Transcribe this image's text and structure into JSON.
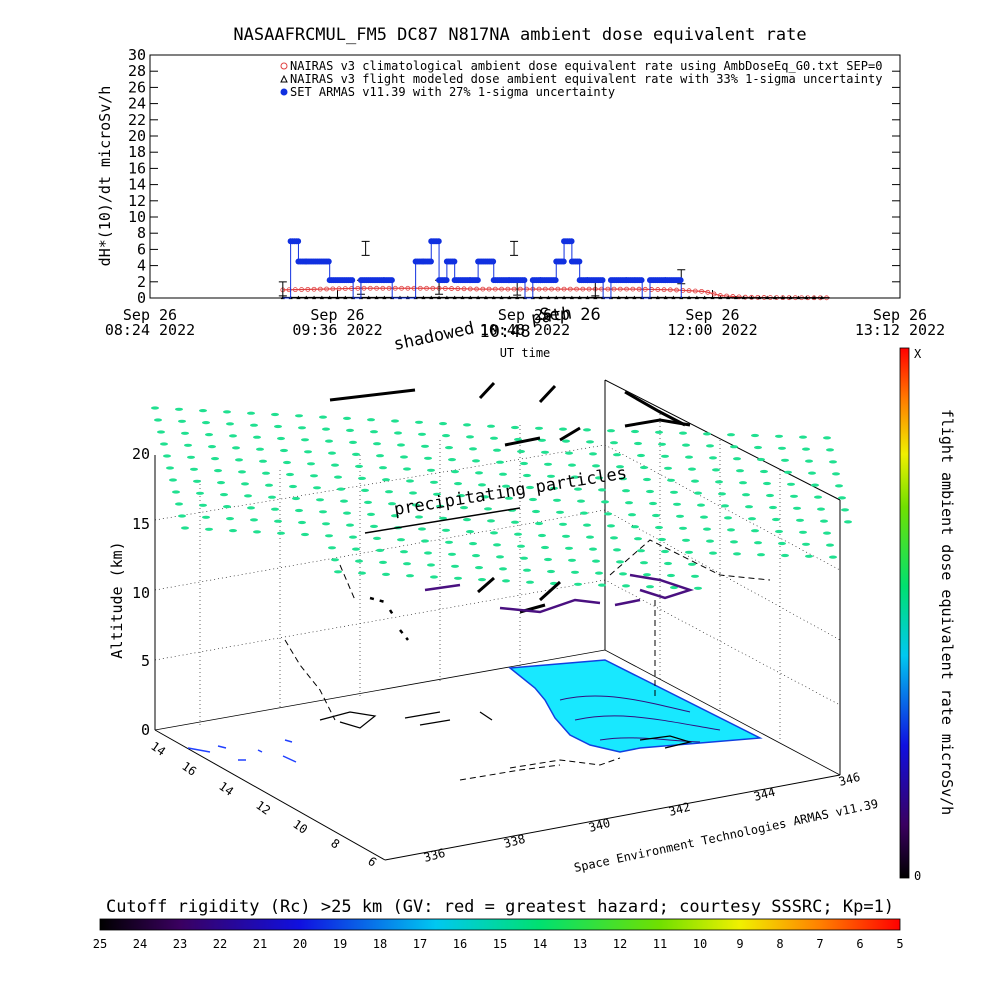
{
  "chart_data": [
    {
      "type": "line",
      "title": "NASAAFRCMUL_FM5 DC87 N817NA ambient dose equivalent rate",
      "ylabel": "dH*(10)/dt microSv/h",
      "xlabel": "UT time",
      "ylim": [
        0,
        30
      ],
      "yticks": [
        "0",
        "2",
        "4",
        "6",
        "8",
        "10",
        "12",
        "14",
        "16",
        "18",
        "20",
        "22",
        "24",
        "26",
        "28",
        "30"
      ],
      "xlim_hours": [
        8.4,
        13.2
      ],
      "xticks": [
        {
          "t": 8.4,
          "line1": "Sep 26",
          "line2": "08:24 2022"
        },
        {
          "t": 9.6,
          "line1": "Sep 26",
          "line2": "09:36 2022"
        },
        {
          "t": 10.8,
          "line1": "Sep 26",
          "line2": "10:48 2022"
        },
        {
          "t": 12.0,
          "line1": "Sep 26",
          "line2": "12:00 2022"
        },
        {
          "t": 13.2,
          "line1": "Sep 26",
          "line2": "13:12 2022"
        }
      ],
      "legend_position": "top-right",
      "series": [
        {
          "name": "NAIRAS v3 climatological ambient dose equivalent rate using AmbDoseEq_G0.txt SEP=0",
          "color": "#e04040",
          "x": [
            9.25,
            9.5,
            9.75,
            10.0,
            10.25,
            10.5,
            10.75,
            11.0,
            11.25,
            11.5,
            11.75,
            11.95,
            12.05,
            12.2,
            12.4,
            12.6,
            12.75
          ],
          "y": [
            1.0,
            1.1,
            1.2,
            1.2,
            1.2,
            1.1,
            1.1,
            1.1,
            1.1,
            1.1,
            1.0,
            0.8,
            0.3,
            0.1,
            0.05,
            0.03,
            0.02
          ]
        },
        {
          "name": "NAIRAS v3 flight modeled dose ambient equivalent rate with 33% 1-sigma uncertainty",
          "color": "#000000",
          "x": [
            9.25,
            9.5,
            9.75,
            10.0,
            10.25,
            10.5,
            10.75,
            11.0,
            11.25,
            11.5,
            11.75,
            12.0,
            12.25,
            12.5,
            12.75
          ],
          "y": [
            0.05,
            0.05,
            0.05,
            0.05,
            0.05,
            0.05,
            0.05,
            0.05,
            0.05,
            0.05,
            0.05,
            0.03,
            0.02,
            0.02,
            0.02
          ]
        },
        {
          "name": "SET ARMAS v11.39 with 27% 1-sigma uncertainty",
          "color": "#1030e0",
          "x": [
            9.25,
            9.3,
            9.35,
            9.4,
            9.55,
            9.7,
            9.75,
            9.9,
            9.95,
            10.1,
            10.15,
            10.2,
            10.25,
            10.3,
            10.35,
            10.45,
            10.5,
            10.6,
            10.7,
            10.8,
            10.85,
            10.9,
            11.0,
            11.05,
            11.1,
            11.15,
            11.2,
            11.3,
            11.35,
            11.45,
            11.55,
            11.6,
            11.7,
            11.8
          ],
          "y": [
            0,
            7,
            4.5,
            4.5,
            2.2,
            0,
            2.2,
            2.2,
            0,
            4.5,
            4.5,
            7,
            2.2,
            4.5,
            2.2,
            2.2,
            4.5,
            2.2,
            2.2,
            0,
            2.2,
            2.2,
            4.5,
            7,
            4.5,
            2.2,
            2.2,
            0,
            2.2,
            2.2,
            0,
            2.2,
            2.2,
            0
          ]
        }
      ]
    },
    {
      "type": "scatter",
      "title": "",
      "ylabel": "Altitude (km)",
      "zticks": [
        "0",
        "5",
        "10",
        "15",
        "20"
      ],
      "lat_ticks": [
        "14",
        "16",
        "14",
        "12",
        "10",
        "8",
        "6"
      ],
      "lon_ticks": [
        "336",
        "338",
        "340",
        "342",
        "344",
        "346"
      ],
      "annotations": [
        "shadowed",
        "Sep 26",
        "10:48",
        "path",
        "precipitating particles",
        "UT time"
      ],
      "credit": "Space Environment Technologies ARMAS v11.39",
      "colorbar": {
        "label": "flight ambient dose equivalent rate microSv/h",
        "top": "X",
        "bottom": "0"
      },
      "bottom_colorbar": {
        "label": "Cutoff rigidity (Rc) >25 km (GV: red = greatest hazard; courtesy SSSRC; Kp=1)",
        "ticks": [
          "25",
          "24",
          "23",
          "22",
          "21",
          "20",
          "19",
          "18",
          "17",
          "16",
          "15",
          "14",
          "13",
          "12",
          "11",
          "10",
          "9",
          "8",
          "7",
          "6",
          "5"
        ]
      }
    }
  ]
}
